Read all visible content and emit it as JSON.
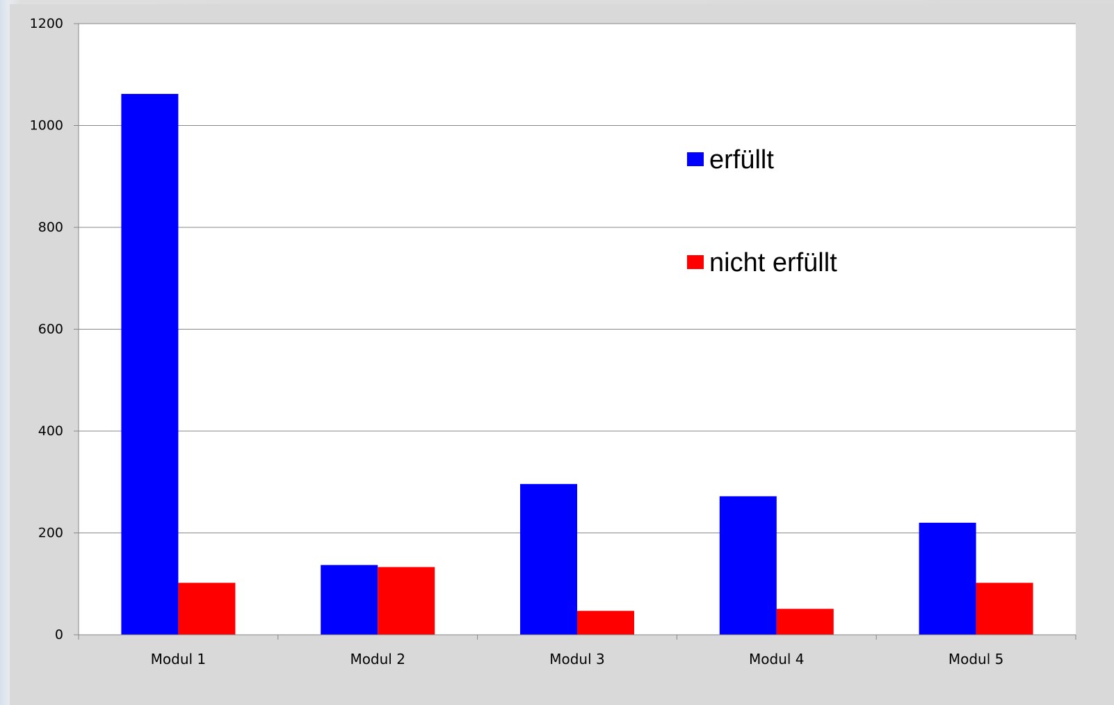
{
  "chart_data": {
    "type": "bar",
    "categories": [
      "Modul 1",
      "Modul 2",
      "Modul 3",
      "Modul 4",
      "Modul 5"
    ],
    "series": [
      {
        "name": "erfüllt",
        "color": "#0000ff",
        "values": [
          1062,
          137,
          296,
          272,
          220
        ]
      },
      {
        "name": "nicht erfüllt",
        "color": "#ff0000",
        "values": [
          102,
          133,
          47,
          51,
          102
        ]
      }
    ],
    "ylim": [
      0,
      1200
    ],
    "yticks": [
      "0",
      "200",
      "400",
      "600",
      "800",
      "1000",
      "1200"
    ],
    "grid": true,
    "legend_position": "top-right",
    "plot_background": "#ffffff",
    "gridline_color": "#868686"
  }
}
